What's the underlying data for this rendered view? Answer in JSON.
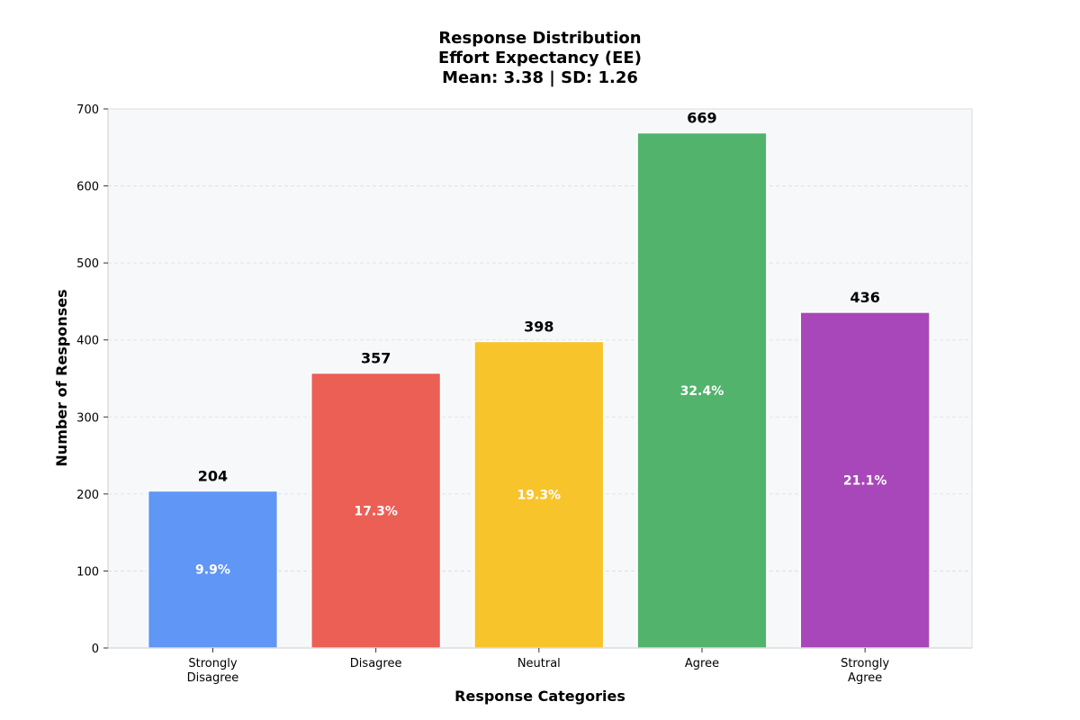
{
  "chart_data": {
    "type": "bar",
    "title_lines": [
      "Response Distribution",
      "Effort Expectancy (EE)",
      "Mean: 3.38 | SD: 1.26"
    ],
    "xlabel": "Response Categories",
    "ylabel": "Number of Responses",
    "categories": [
      [
        "Strongly",
        "Disagree"
      ],
      [
        "Disagree"
      ],
      [
        "Neutral"
      ],
      [
        "Agree"
      ],
      [
        "Strongly",
        "Agree"
      ]
    ],
    "values": [
      204,
      357,
      398,
      669,
      436
    ],
    "value_labels": [
      "204",
      "357",
      "398",
      "669",
      "436"
    ],
    "percent_labels": [
      "9.9%",
      "17.3%",
      "19.3%",
      "32.4%",
      "21.1%"
    ],
    "colors": [
      "#6096f5",
      "#eb5f55",
      "#f8c42b",
      "#52b36c",
      "#a847b9"
    ],
    "ylim": [
      0,
      700
    ],
    "yticks": [
      0,
      100,
      200,
      300,
      400,
      500,
      600,
      700
    ],
    "grid": true,
    "plot_background": "#f7f8fa"
  }
}
